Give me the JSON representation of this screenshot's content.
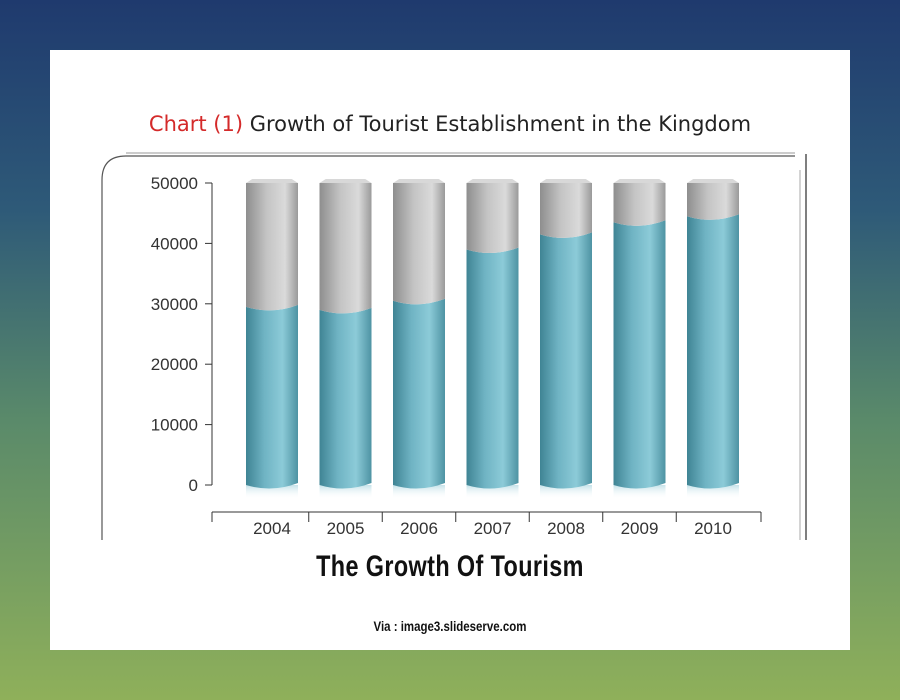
{
  "page": {
    "caption": "The Growth Of Tourism",
    "via": "Via : image3.slideserve.com"
  },
  "colors": {
    "background_top": "#1f3a6e",
    "background_bottom": "#8fb05a",
    "bar_teal": "#6fb3c3",
    "bar_grey": "#b8b8b8",
    "title_red": "#d42a2a"
  },
  "chart_data": {
    "type": "bar",
    "title_prefix": "Chart (1)",
    "title": "Growth of Tourist Establishment in the Kingdom",
    "categories": [
      "2004",
      "2005",
      "2006",
      "2007",
      "2008",
      "2009",
      "2010"
    ],
    "series": [
      {
        "values": [
          29500,
          29000,
          30500,
          39000,
          41500,
          43500,
          44500
        ]
      },
      {
        "values": [
          20500,
          21000,
          19500,
          11000,
          8500,
          6500,
          5500
        ]
      }
    ],
    "stacked": true,
    "ylim": [
      0,
      50000
    ],
    "yticks": [
      0,
      10000,
      20000,
      30000,
      40000,
      50000
    ],
    "ytick_labels": [
      "0",
      "10000",
      "20000",
      "30000",
      "40000",
      "50000"
    ],
    "xlabel": "",
    "ylabel": "",
    "grid": false,
    "legend": "none"
  }
}
